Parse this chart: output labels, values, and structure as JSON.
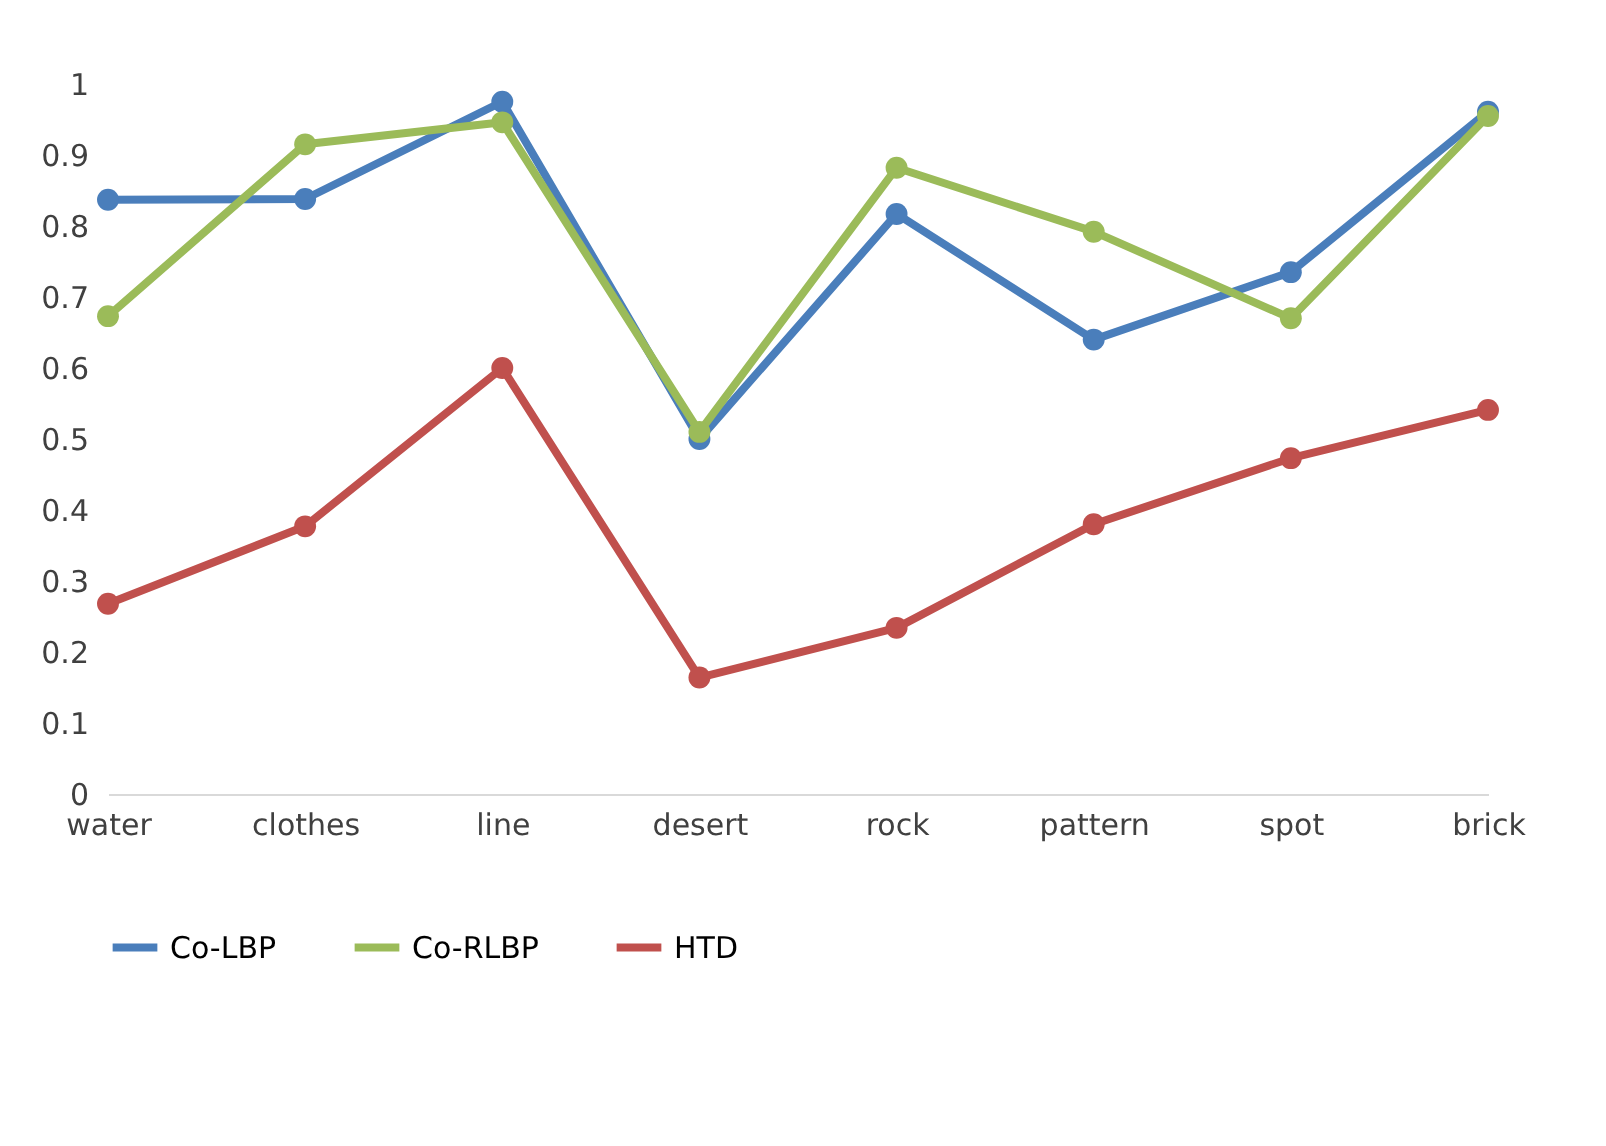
{
  "chart_data": {
    "type": "line",
    "categories": [
      "water",
      "clothes",
      "line",
      "desert",
      "rock",
      "pattern",
      "spot",
      "brick"
    ],
    "series": [
      {
        "name": "Co-LBP",
        "color": "#4a7ebb",
        "values": [
          0.837,
          0.838,
          0.975,
          0.5,
          0.817,
          0.64,
          0.735,
          0.961
        ]
      },
      {
        "name": "Co-RLBP",
        "color": "#9bbb59",
        "values": [
          0.673,
          0.915,
          0.946,
          0.51,
          0.882,
          0.792,
          0.67,
          0.955
        ]
      },
      {
        "name": "HTD",
        "color": "#c0504d",
        "values": [
          0.268,
          0.377,
          0.6,
          0.164,
          0.234,
          0.38,
          0.473,
          0.541
        ]
      }
    ],
    "ylim": [
      0,
      1
    ],
    "yticks": [
      0,
      0.1,
      0.2,
      0.3,
      0.4,
      0.5,
      0.6,
      0.7,
      0.8,
      0.9,
      1
    ],
    "grid": false,
    "legend": "bottom",
    "marker": "circle",
    "line_style": "solid"
  }
}
